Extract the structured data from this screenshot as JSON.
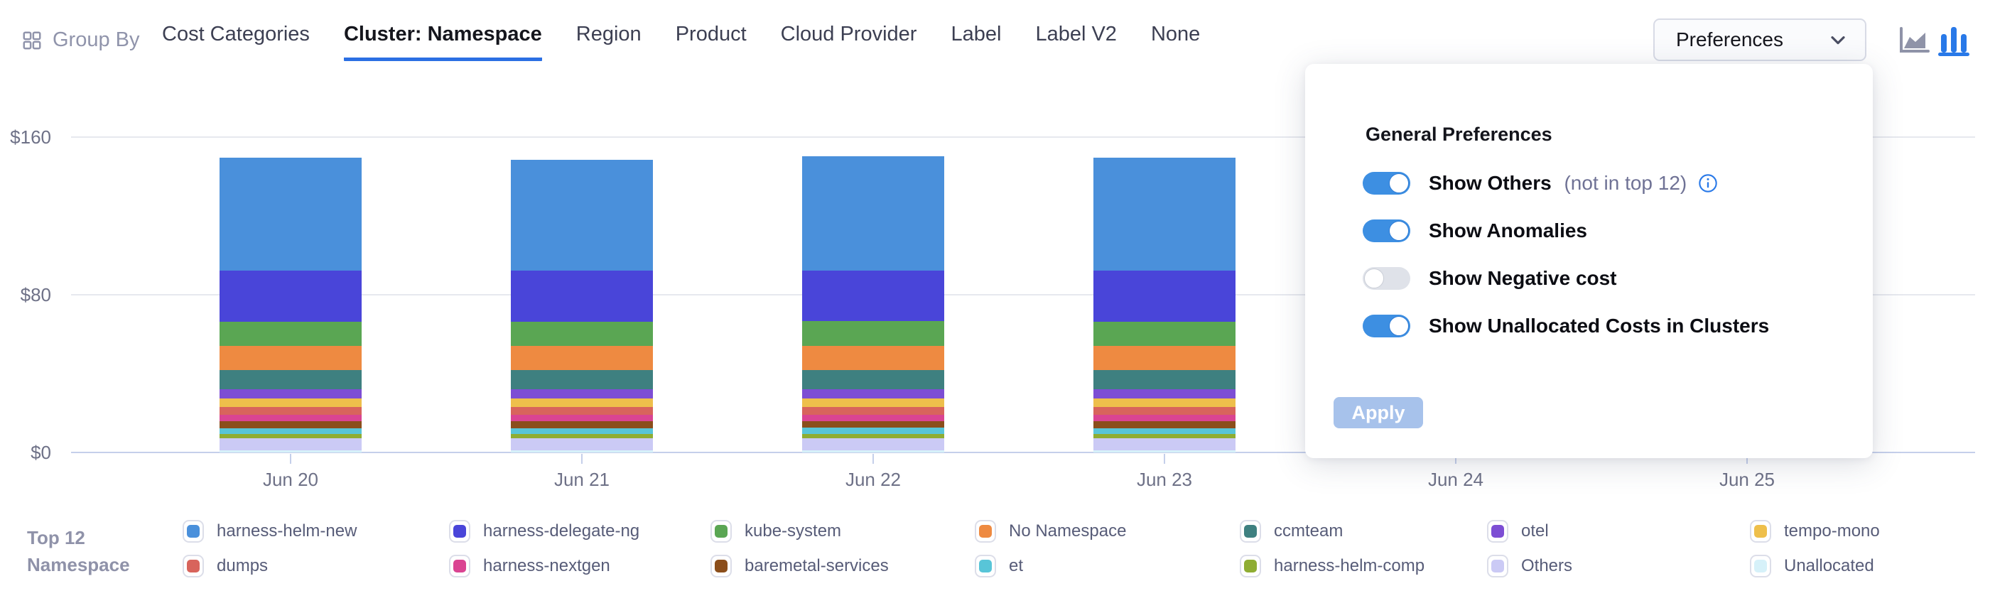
{
  "header": {
    "group_by_label": "Group By",
    "group_by_icon": "grid-icon",
    "tabs": [
      {
        "label": "Cost Categories",
        "active": false
      },
      {
        "label": "Cluster: Namespace",
        "active": true
      },
      {
        "label": "Region",
        "active": false
      },
      {
        "label": "Product",
        "active": false
      },
      {
        "label": "Cloud Provider",
        "active": false
      },
      {
        "label": "Label",
        "active": false
      },
      {
        "label": "Label V2",
        "active": false
      },
      {
        "label": "None",
        "active": false
      }
    ],
    "preferences_button": {
      "label": "Preferences",
      "icon": "chevron-down-icon"
    },
    "chart_type_icons": [
      {
        "name": "area-chart-icon",
        "active": false
      },
      {
        "name": "bar-chart-icon",
        "active": true
      }
    ]
  },
  "preferences_panel": {
    "title": "General Preferences",
    "toggles": [
      {
        "label": "Show Others",
        "suffix": "(not in top 12)",
        "info_icon": true,
        "on": true
      },
      {
        "label": "Show Anomalies",
        "suffix": "",
        "info_icon": false,
        "on": true
      },
      {
        "label": "Show Negative cost",
        "suffix": "",
        "info_icon": false,
        "on": false
      },
      {
        "label": "Show Unallocated Costs in Clusters",
        "suffix": "",
        "info_icon": false,
        "on": true
      }
    ],
    "apply_button": {
      "label": "Apply",
      "disabled": true
    }
  },
  "legend": {
    "title_lines": [
      "Top 12",
      "Namespace"
    ]
  },
  "colors": {
    "accent_blue": "#2B6FE3",
    "toggle_on": "#3D8FE2",
    "toggle_off": "#DFE2E9",
    "apply_disabled": "#A7C2EB",
    "axis_line": "#C5CFEA",
    "gridline": "#E6E8EF",
    "label_gray": "#6E7187"
  },
  "chart_data": {
    "type": "bar",
    "stacked": true,
    "title": "",
    "xlabel": "",
    "ylabel": "",
    "x": [
      "Jun 20",
      "Jun 21",
      "Jun 22",
      "Jun 23",
      "Jun 24",
      "Jun 25"
    ],
    "y_ticks": [
      {
        "label": "$0",
        "value": 0
      },
      {
        "label": "$80",
        "value": 80
      },
      {
        "label": "$160",
        "value": 160
      }
    ],
    "ylim": [
      0,
      160
    ],
    "grid": true,
    "legend_position": "bottom",
    "occlusion_note": "Jun 24 and Jun 25 bars are hidden behind the open preferences panel; null = not visible",
    "series": [
      {
        "name": "harness-helm-new",
        "color": "#4A90DB",
        "values": [
          57.3,
          56.5,
          58.0,
          57.3,
          null,
          null
        ]
      },
      {
        "name": "harness-delegate-ng",
        "color": "#4945D9",
        "values": [
          25.9,
          25.9,
          25.9,
          25.9,
          null,
          null
        ]
      },
      {
        "name": "kube-system",
        "color": "#5AA653",
        "values": [
          12.3,
          12.2,
          12.3,
          12.3,
          null,
          null
        ]
      },
      {
        "name": "No Namespace",
        "color": "#EE8A41",
        "values": [
          12.3,
          12.2,
          12.3,
          12.3,
          null,
          null
        ]
      },
      {
        "name": "ccmteam",
        "color": "#3E8080",
        "values": [
          9.7,
          9.7,
          9.7,
          9.7,
          null,
          null
        ]
      },
      {
        "name": "otel",
        "color": "#7D4ED4",
        "values": [
          4.7,
          4.7,
          4.7,
          4.7,
          null,
          null
        ]
      },
      {
        "name": "tempo-mono",
        "color": "#EEBF4B",
        "values": [
          4.3,
          4.3,
          4.3,
          4.3,
          null,
          null
        ]
      },
      {
        "name": "dumps",
        "color": "#D8645C",
        "values": [
          4.0,
          4.0,
          4.0,
          4.0,
          null,
          null
        ]
      },
      {
        "name": "harness-nextgen",
        "color": "#DA4492",
        "values": [
          3.2,
          3.2,
          3.2,
          3.2,
          null,
          null
        ]
      },
      {
        "name": "baremetal-services",
        "color": "#8B4E1B",
        "values": [
          3.6,
          3.6,
          3.6,
          3.6,
          null,
          null
        ]
      },
      {
        "name": "et",
        "color": "#58C5D8",
        "values": [
          2.9,
          2.9,
          2.9,
          2.9,
          null,
          null
        ]
      },
      {
        "name": "harness-helm-comp",
        "color": "#8FAD33",
        "values": [
          2.2,
          2.2,
          2.2,
          2.2,
          null,
          null
        ]
      },
      {
        "name": "Others",
        "color": "#CBCAF5",
        "values": [
          6.3,
          6.3,
          6.4,
          6.3,
          null,
          null
        ]
      },
      {
        "name": "Unallocated",
        "color": "#D6F1F9",
        "values": [
          0.9,
          0.9,
          0.9,
          0.9,
          null,
          null
        ]
      }
    ]
  }
}
